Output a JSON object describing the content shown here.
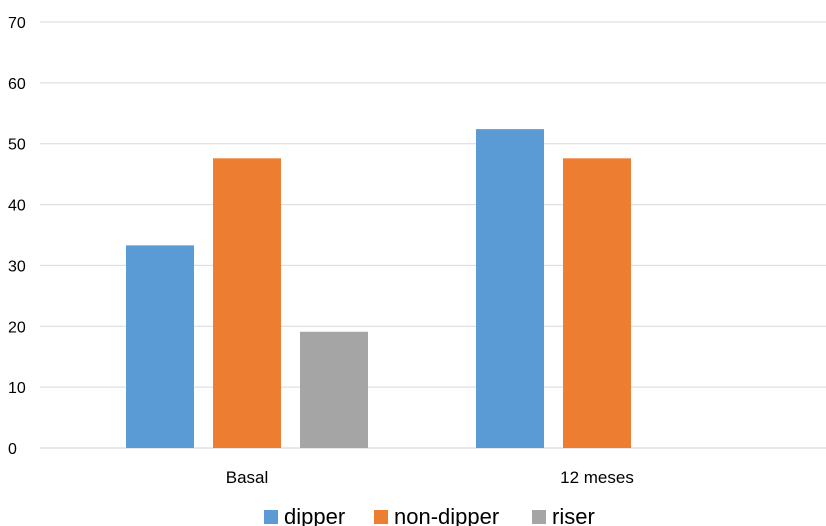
{
  "chart_data": {
    "type": "bar",
    "categories": [
      "Basal",
      "12 meses"
    ],
    "series": [
      {
        "name": "dipper",
        "color": "#5b9bd5",
        "values": [
          33.3,
          52.4
        ]
      },
      {
        "name": "non-dipper",
        "color": "#ed7d31",
        "values": [
          47.6,
          47.6
        ]
      },
      {
        "name": "riser",
        "color": "#a5a5a5",
        "values": [
          19.1,
          0
        ]
      }
    ],
    "ylim": [
      0,
      70
    ],
    "yticks": [
      0,
      10,
      20,
      30,
      40,
      50,
      60,
      70
    ],
    "grid": true,
    "legend_position": "bottom",
    "title": "",
    "xlabel": "",
    "ylabel": ""
  }
}
